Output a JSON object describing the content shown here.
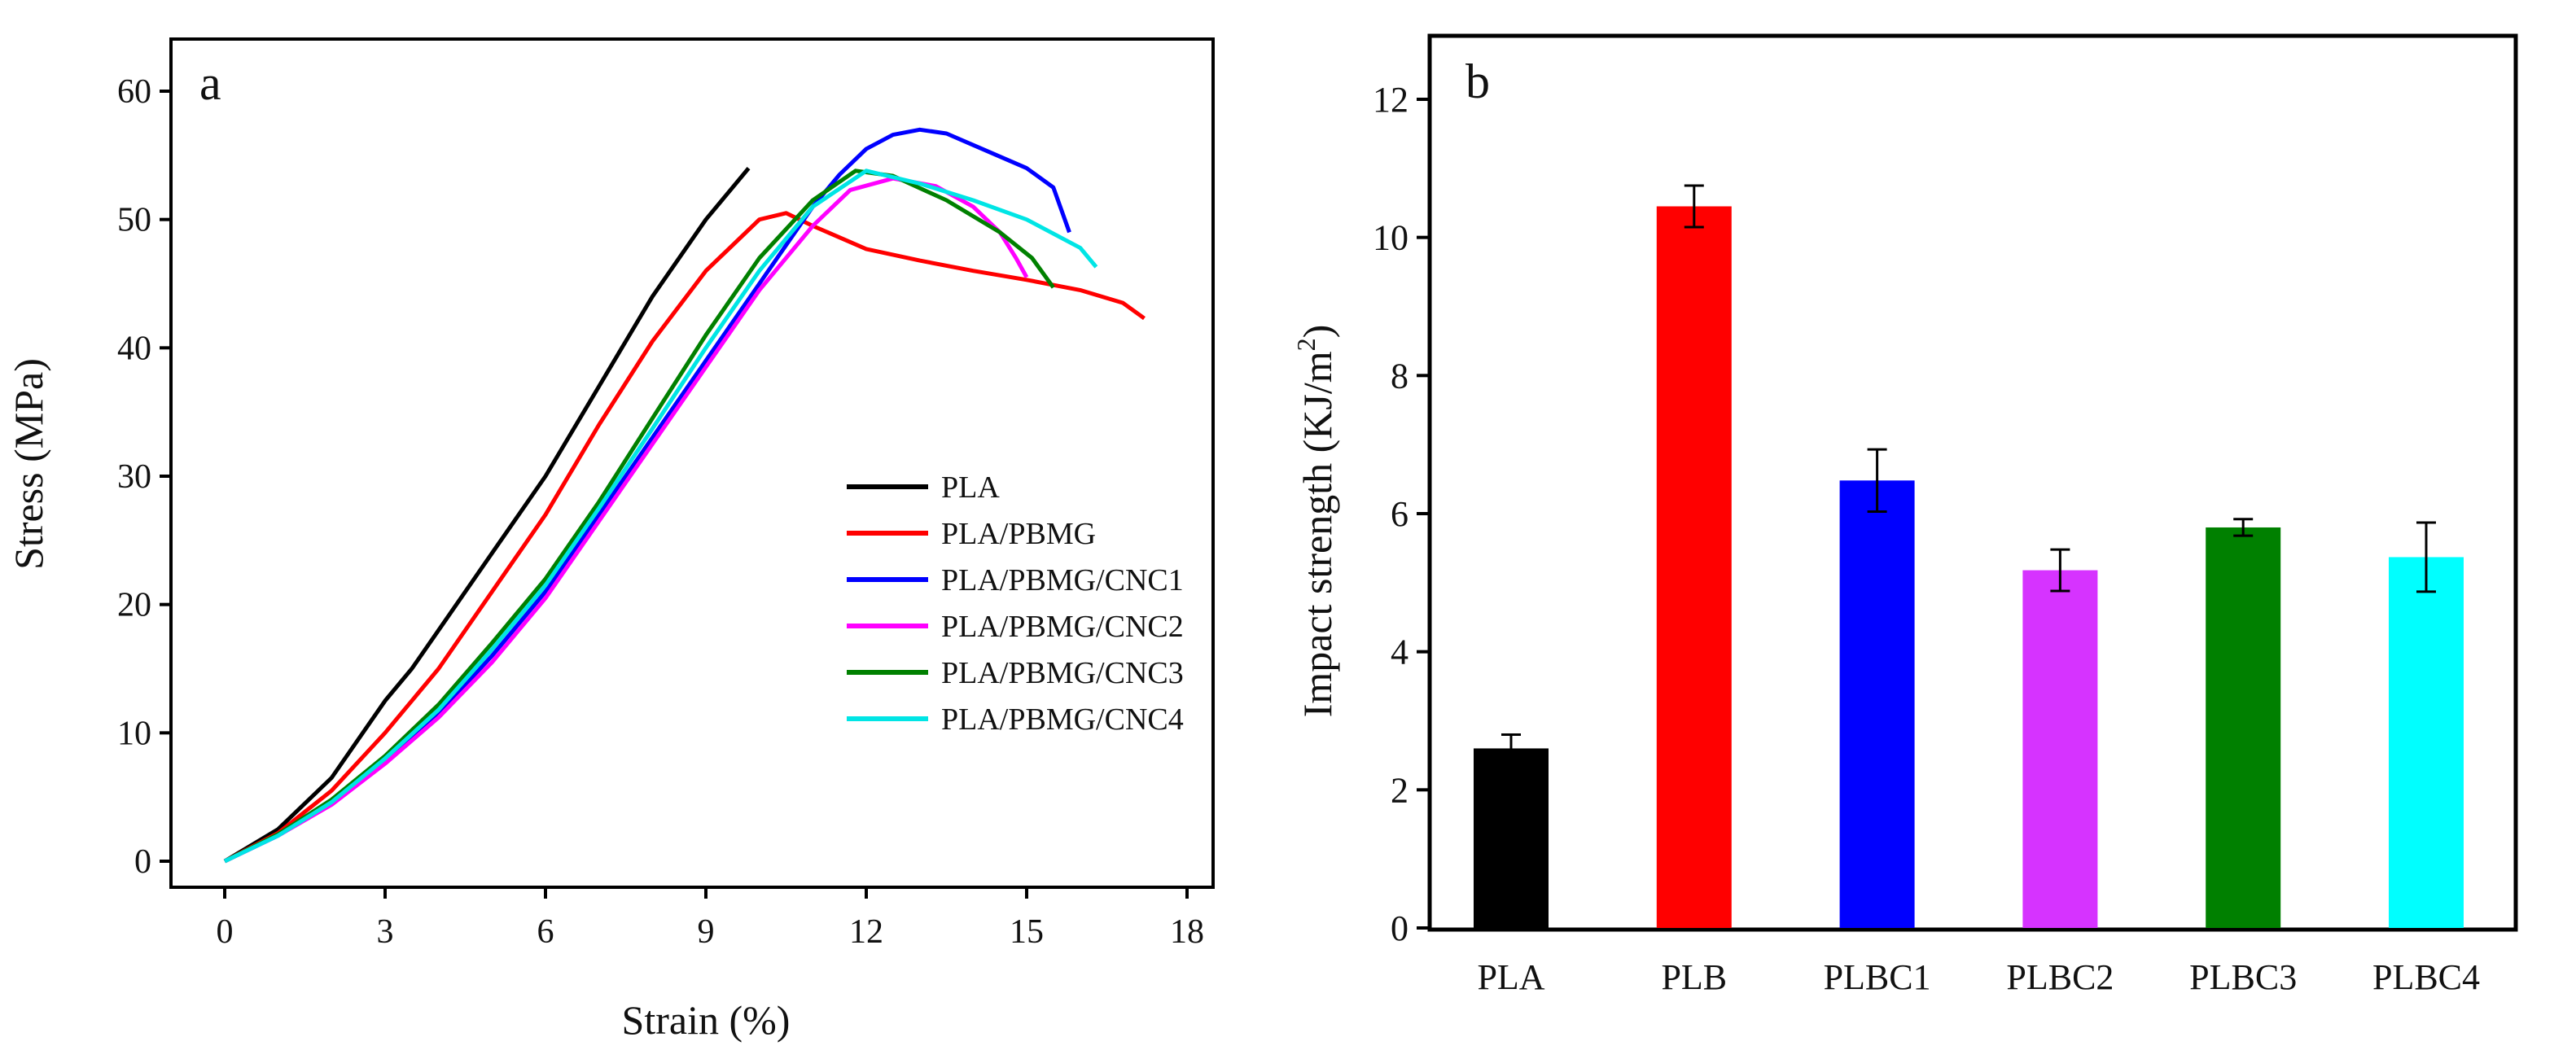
{
  "chart_data": [
    {
      "type": "line",
      "panel_label": "a",
      "title": "",
      "xlabel": "Strain (%)",
      "ylabel": "Stress (MPa)",
      "xlim": [
        -1,
        20.5
      ],
      "ylim": [
        -2,
        64
      ],
      "xticks": [
        0,
        3,
        6,
        9,
        12,
        15,
        18
      ],
      "yticks": [
        0,
        10,
        20,
        30,
        40,
        50,
        60
      ],
      "grid": false,
      "legend_position": "bottom-right",
      "series": [
        {
          "name": "PLA",
          "color": "#000000",
          "points": [
            [
              0,
              0
            ],
            [
              1,
              2.5
            ],
            [
              2,
              6.5
            ],
            [
              3,
              12.5
            ],
            [
              3.5,
              15
            ],
            [
              4,
              18
            ],
            [
              5,
              24
            ],
            [
              6,
              30
            ],
            [
              7,
              37
            ],
            [
              8,
              44
            ],
            [
              9,
              50
            ],
            [
              9.8,
              54
            ]
          ]
        },
        {
          "name": "PLA/PBMG",
          "color": "#ff0000",
          "points": [
            [
              0,
              0
            ],
            [
              1,
              2.2
            ],
            [
              2,
              5.5
            ],
            [
              3,
              10
            ],
            [
              4,
              15
            ],
            [
              5,
              21
            ],
            [
              6,
              27
            ],
            [
              7,
              34
            ],
            [
              8,
              40.5
            ],
            [
              9,
              46
            ],
            [
              10,
              50
            ],
            [
              10.5,
              50.5
            ],
            [
              11,
              49.5
            ],
            [
              12,
              47.7
            ],
            [
              13,
              46.8
            ],
            [
              14,
              46
            ],
            [
              15,
              45.3
            ],
            [
              16,
              44.5
            ],
            [
              16.8,
              43.5
            ],
            [
              17.2,
              42.3
            ]
          ]
        },
        {
          "name": "PLA/PBMG/CNC1",
          "color": "#0000ff",
          "points": [
            [
              0,
              0
            ],
            [
              1,
              2
            ],
            [
              2,
              4.5
            ],
            [
              3,
              7.8
            ],
            [
              4,
              11.5
            ],
            [
              5,
              16
            ],
            [
              6,
              21
            ],
            [
              7,
              27
            ],
            [
              8,
              33
            ],
            [
              9,
              39
            ],
            [
              10,
              45
            ],
            [
              11,
              51
            ],
            [
              11.5,
              53.5
            ],
            [
              12,
              55.5
            ],
            [
              12.5,
              56.6
            ],
            [
              13,
              57
            ],
            [
              13.5,
              56.7
            ],
            [
              14,
              55.8
            ],
            [
              15,
              54
            ],
            [
              15.5,
              52.5
            ],
            [
              15.8,
              49
            ]
          ]
        },
        {
          "name": "PLA/PBMG/CNC2",
          "color": "#ff00ff",
          "points": [
            [
              0,
              0
            ],
            [
              1,
              2
            ],
            [
              2,
              4.4
            ],
            [
              3,
              7.6
            ],
            [
              4,
              11.2
            ],
            [
              5,
              15.5
            ],
            [
              6,
              20.5
            ],
            [
              7,
              26.5
            ],
            [
              8,
              32.5
            ],
            [
              9,
              38.5
            ],
            [
              10,
              44.5
            ],
            [
              11,
              49.5
            ],
            [
              11.7,
              52.3
            ],
            [
              12.5,
              53.2
            ],
            [
              13.3,
              52.6
            ],
            [
              14,
              51
            ],
            [
              14.5,
              49
            ],
            [
              14.8,
              47
            ],
            [
              15,
              45.5
            ]
          ]
        },
        {
          "name": "PLA/PBMG/CNC3",
          "color": "#008000",
          "points": [
            [
              0,
              0
            ],
            [
              1,
              2.1
            ],
            [
              2,
              4.8
            ],
            [
              3,
              8.2
            ],
            [
              4,
              12.2
            ],
            [
              5,
              17
            ],
            [
              6,
              22
            ],
            [
              7,
              28
            ],
            [
              8,
              34.5
            ],
            [
              9,
              41
            ],
            [
              10,
              47
            ],
            [
              11,
              51.5
            ],
            [
              11.8,
              53.8
            ],
            [
              12.5,
              53.4
            ],
            [
              13.5,
              51.5
            ],
            [
              14.5,
              49
            ],
            [
              15.1,
              47
            ],
            [
              15.5,
              44.7
            ]
          ]
        },
        {
          "name": "PLA/PBMG/CNC4",
          "color": "#00e5e5",
          "points": [
            [
              0,
              0
            ],
            [
              1,
              2
            ],
            [
              2,
              4.6
            ],
            [
              3,
              8
            ],
            [
              4,
              11.8
            ],
            [
              5,
              16.5
            ],
            [
              6,
              21.5
            ],
            [
              7,
              27.5
            ],
            [
              8,
              33.7
            ],
            [
              9,
              40
            ],
            [
              10,
              46
            ],
            [
              11,
              51
            ],
            [
              12,
              53.8
            ],
            [
              13,
              52.8
            ],
            [
              14,
              51.5
            ],
            [
              15,
              50
            ],
            [
              16,
              47.8
            ],
            [
              16.3,
              46.3
            ]
          ]
        }
      ]
    },
    {
      "type": "bar",
      "panel_label": "b",
      "title": "",
      "xlabel": "",
      "ylabel": "Impact strength (KJ/m",
      "ylabel_sup": "2",
      "ylabel_end": ")",
      "ylim": [
        0,
        13
      ],
      "yticks": [
        0,
        2,
        4,
        6,
        8,
        10,
        12
      ],
      "grid": false,
      "categories": [
        "PLA",
        "PLB",
        "PLBC1",
        "PLBC2",
        "PLBC3",
        "PLBC4"
      ],
      "values": [
        2.6,
        10.45,
        6.48,
        5.18,
        5.8,
        5.37
      ],
      "errors": [
        0.2,
        0.3,
        0.45,
        0.3,
        0.12,
        0.5
      ],
      "colors": [
        "#000000",
        "#ff0000",
        "#0000ff",
        "#d633ff",
        "#008000",
        "#00ffff"
      ]
    }
  ]
}
